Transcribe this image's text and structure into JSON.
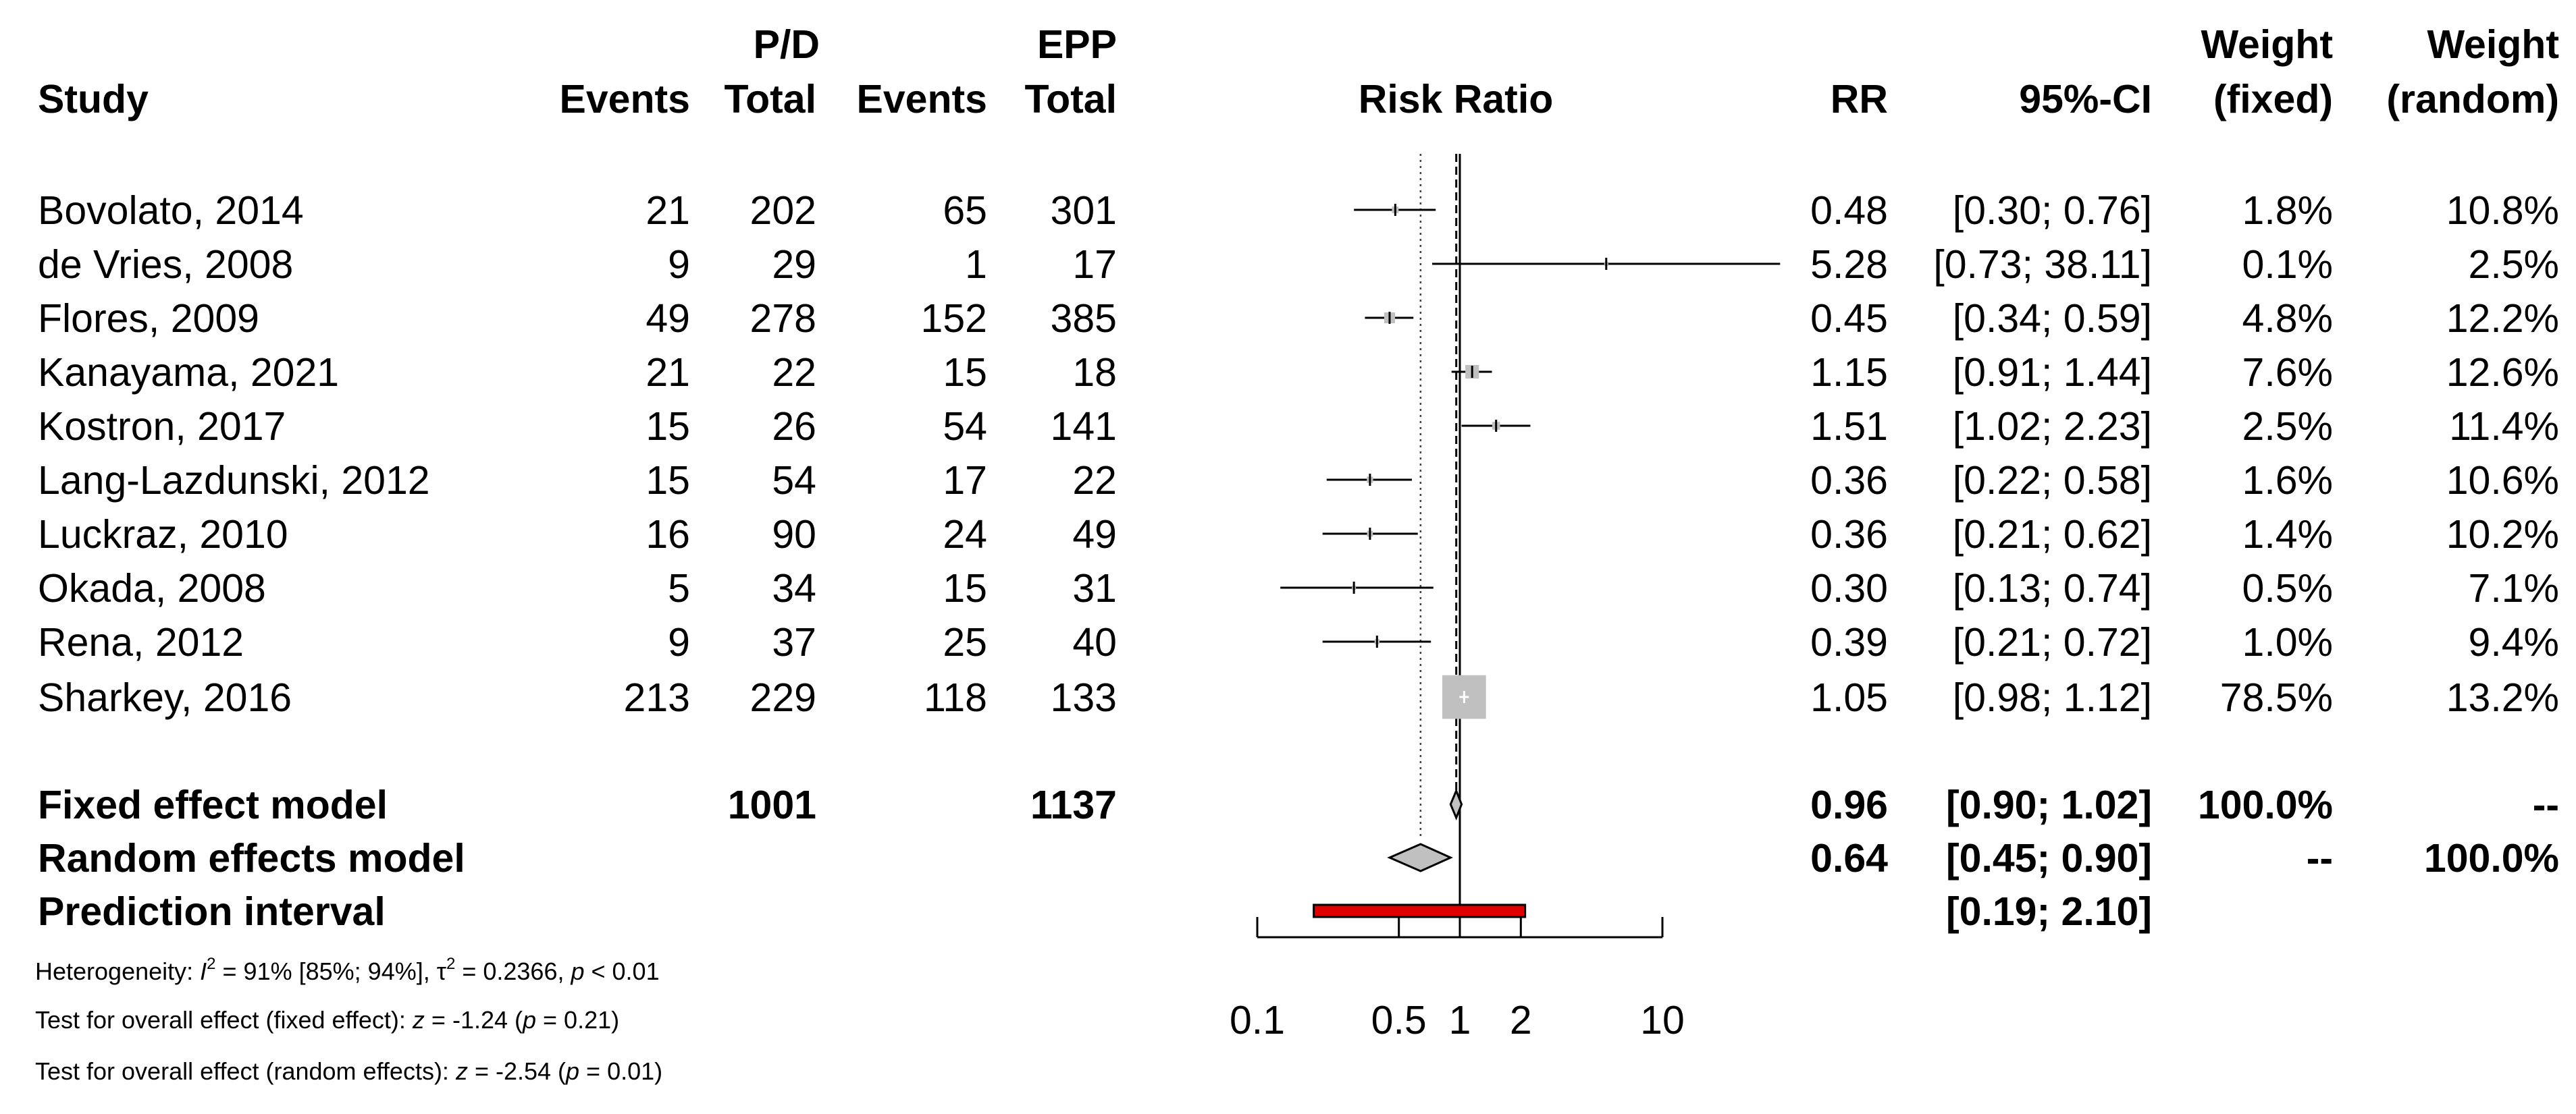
{
  "chart_data": {
    "type": "forest",
    "title": "Risk Ratio",
    "measure": "RR",
    "xscale": "log",
    "xlim": [
      0.1,
      10
    ],
    "xticks": [
      0.1,
      0.5,
      1,
      2,
      10
    ],
    "xtick_labels": [
      "0.1",
      "0.5",
      "1",
      "2",
      "10"
    ],
    "null_value": 1,
    "fixed_estimate": 0.96,
    "random_estimate": 0.64,
    "group_labels": {
      "pd": "P/D",
      "epp": "EPP"
    },
    "headers": {
      "study": "Study",
      "pd_events": "Events",
      "pd_total": "Total",
      "epp_events": "Events",
      "epp_total": "Total",
      "rr": "RR",
      "ci": "95%-CI",
      "weight": "Weight",
      "fixed": "(fixed)",
      "random": "(random)"
    },
    "studies": [
      {
        "name": "Bovolato, 2014",
        "pd_events": "21",
        "pd_total": "202",
        "epp_events": "65",
        "epp_total": "301",
        "rr": "0.48",
        "ci": "[0.30;  0.76]",
        "w_fixed": "1.8%",
        "w_random": "10.8%",
        "rr_value": 0.48,
        "lower": 0.3,
        "upper": 0.76,
        "w_fixed_value": 1.8
      },
      {
        "name": "de Vries, 2008",
        "pd_events": "9",
        "pd_total": "29",
        "epp_events": "1",
        "epp_total": "17",
        "rr": "5.28",
        "ci": "[0.73; 38.11]",
        "w_fixed": "0.1%",
        "w_random": "2.5%",
        "rr_value": 5.28,
        "lower": 0.73,
        "upper": 38.11,
        "w_fixed_value": 0.1
      },
      {
        "name": "Flores, 2009",
        "pd_events": "49",
        "pd_total": "278",
        "epp_events": "152",
        "epp_total": "385",
        "rr": "0.45",
        "ci": "[0.34;  0.59]",
        "w_fixed": "4.8%",
        "w_random": "12.2%",
        "rr_value": 0.45,
        "lower": 0.34,
        "upper": 0.59,
        "w_fixed_value": 4.8
      },
      {
        "name": "Kanayama, 2021",
        "pd_events": "21",
        "pd_total": "22",
        "epp_events": "15",
        "epp_total": "18",
        "rr": "1.15",
        "ci": "[0.91;  1.44]",
        "w_fixed": "7.6%",
        "w_random": "12.6%",
        "rr_value": 1.15,
        "lower": 0.91,
        "upper": 1.44,
        "w_fixed_value": 7.6
      },
      {
        "name": "Kostron, 2017",
        "pd_events": "15",
        "pd_total": "26",
        "epp_events": "54",
        "epp_total": "141",
        "rr": "1.51",
        "ci": "[1.02;  2.23]",
        "w_fixed": "2.5%",
        "w_random": "11.4%",
        "rr_value": 1.51,
        "lower": 1.02,
        "upper": 2.23,
        "w_fixed_value": 2.5
      },
      {
        "name": "Lang-Lazdunski, 2012",
        "pd_events": "15",
        "pd_total": "54",
        "epp_events": "17",
        "epp_total": "22",
        "rr": "0.36",
        "ci": "[0.22;  0.58]",
        "w_fixed": "1.6%",
        "w_random": "10.6%",
        "rr_value": 0.36,
        "lower": 0.22,
        "upper": 0.58,
        "w_fixed_value": 1.6
      },
      {
        "name": "Luckraz, 2010",
        "pd_events": "16",
        "pd_total": "90",
        "epp_events": "24",
        "epp_total": "49",
        "rr": "0.36",
        "ci": "[0.21;  0.62]",
        "w_fixed": "1.4%",
        "w_random": "10.2%",
        "rr_value": 0.36,
        "lower": 0.21,
        "upper": 0.62,
        "w_fixed_value": 1.4
      },
      {
        "name": "Okada, 2008",
        "pd_events": "5",
        "pd_total": "34",
        "epp_events": "15",
        "epp_total": "31",
        "rr": "0.30",
        "ci": "[0.13;  0.74]",
        "w_fixed": "0.5%",
        "w_random": "7.1%",
        "rr_value": 0.3,
        "lower": 0.13,
        "upper": 0.74,
        "w_fixed_value": 0.5
      },
      {
        "name": "Rena, 2012",
        "pd_events": "9",
        "pd_total": "37",
        "epp_events": "25",
        "epp_total": "40",
        "rr": "0.39",
        "ci": "[0.21;  0.72]",
        "w_fixed": "1.0%",
        "w_random": "9.4%",
        "rr_value": 0.39,
        "lower": 0.21,
        "upper": 0.72,
        "w_fixed_value": 1.0
      },
      {
        "name": "Sharkey, 2016",
        "pd_events": "213",
        "pd_total": "229",
        "epp_events": "118",
        "epp_total": "133",
        "rr": "1.05",
        "ci": "[0.98;  1.12]",
        "w_fixed": "78.5%",
        "w_random": "13.2%",
        "rr_value": 1.05,
        "lower": 0.98,
        "upper": 1.12,
        "w_fixed_value": 78.5
      }
    ],
    "summary": [
      {
        "kind": "fixed",
        "name": "Fixed effect model",
        "pd_total": "1001",
        "epp_total": "1137",
        "rr": "0.96",
        "ci": "[0.90;  1.02]",
        "w_fixed": "100.0%",
        "w_random": "--",
        "rr_value": 0.96,
        "lower": 0.9,
        "upper": 1.02
      },
      {
        "kind": "random",
        "name": "Random effects model",
        "pd_total": "",
        "epp_total": "",
        "rr": "0.64",
        "ci": "[0.45;  0.90]",
        "w_fixed": "--",
        "w_random": "100.0%",
        "rr_value": 0.64,
        "lower": 0.45,
        "upper": 0.9
      },
      {
        "kind": "prediction",
        "name": "Prediction interval",
        "pd_total": "",
        "epp_total": "",
        "rr": "",
        "ci": "[0.19;  2.10]",
        "w_fixed": "",
        "w_random": "",
        "lower": 0.19,
        "upper": 2.1
      }
    ],
    "footnotes": {
      "heterogeneity": {
        "prefix": "Heterogeneity: ",
        "i_sym": "I",
        "i_sup": "2",
        "i_val": " = 91% [85%; 94%], ",
        "tau_sym": "τ",
        "tau_sup": "2",
        "tau_val": " = 0.2366, ",
        "p_sym": "p",
        "p_val": " < 0.01"
      },
      "test_fixed": {
        "prefix": "Test for overall effect (fixed effect): ",
        "z_sym": "z",
        "z_val": " = -1.24 (",
        "p_sym": "p",
        "p_val": " = 0.21)"
      },
      "test_random": {
        "prefix": "Test for overall effect (random effects): ",
        "z_sym": "z",
        "z_val": " = -2.54 (",
        "p_sym": "p",
        "p_val": " = 0.01)"
      }
    },
    "colors": {
      "line": "#000000",
      "square": "#c0c0c0",
      "diamond": "#c0c0c0",
      "prediction_fill": "#e00000",
      "ref_dotted": "#404040"
    }
  }
}
